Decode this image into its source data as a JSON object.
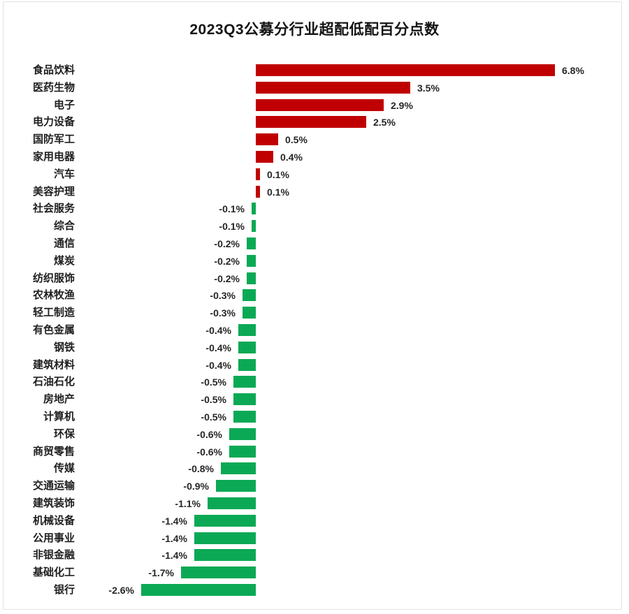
{
  "chart_data": {
    "type": "bar",
    "orientation": "horizontal",
    "title": "2023Q3公募分行业超配低配百分点数",
    "xlabel": "",
    "ylabel": "",
    "xlim": [
      -4.2,
      8.5
    ],
    "grid": false,
    "legend": "none",
    "positive_color": "#C00000",
    "negative_color": "#0BA955",
    "label_color": "#262626",
    "categories": [
      "食品饮料",
      "医药生物",
      "电子",
      "电力设备",
      "国防军工",
      "家用电器",
      "汽车",
      "美容护理",
      "社会服务",
      "综合",
      "通信",
      "煤炭",
      "纺织服饰",
      "农林牧渔",
      "轻工制造",
      "有色金属",
      "钢铁",
      "建筑材料",
      "石油石化",
      "房地产",
      "计算机",
      "环保",
      "商贸零售",
      "传媒",
      "交通运输",
      "建筑装饰",
      "机械设备",
      "公用事业",
      "非银金融",
      "基础化工",
      "银行"
    ],
    "values": [
      6.8,
      3.5,
      2.9,
      2.5,
      0.5,
      0.4,
      0.1,
      0.1,
      -0.1,
      -0.1,
      -0.2,
      -0.2,
      -0.2,
      -0.3,
      -0.3,
      -0.4,
      -0.4,
      -0.4,
      -0.5,
      -0.5,
      -0.5,
      -0.6,
      -0.6,
      -0.8,
      -0.9,
      -1.1,
      -1.4,
      -1.4,
      -1.4,
      -1.7,
      -2.6
    ],
    "value_labels": [
      "6.8%",
      "3.5%",
      "2.9%",
      "2.5%",
      "0.5%",
      "0.4%",
      "0.1%",
      "0.1%",
      "-0.1%",
      "-0.1%",
      "-0.2%",
      "-0.2%",
      "-0.2%",
      "-0.3%",
      "-0.3%",
      "-0.4%",
      "-0.4%",
      "-0.4%",
      "-0.5%",
      "-0.5%",
      "-0.5%",
      "-0.6%",
      "-0.6%",
      "-0.8%",
      "-0.9%",
      "-1.1%",
      "-1.4%",
      "-1.4%",
      "-1.4%",
      "-1.7%",
      "-2.6%"
    ]
  }
}
